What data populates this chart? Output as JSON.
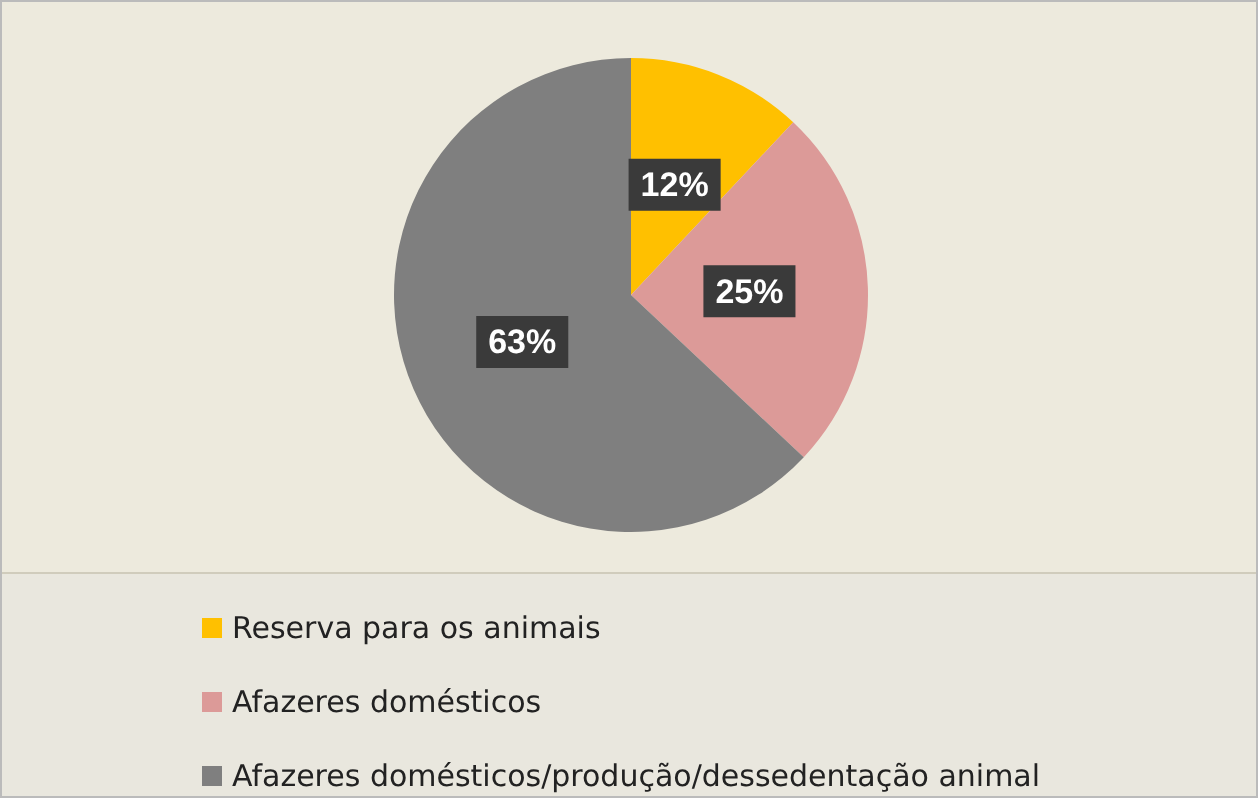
{
  "chart_data": {
    "type": "pie",
    "categories": [
      "Reserva para os animais",
      "Afazeres domésticos",
      "Afazeres domésticos/produção/dessedentação animal"
    ],
    "values": [
      12,
      25,
      63
    ],
    "colors": [
      "#ffc000",
      "#dc9a98",
      "#7f7f7f"
    ],
    "value_labels": [
      "12%",
      "25%",
      "63%"
    ],
    "legend": "bottom"
  }
}
